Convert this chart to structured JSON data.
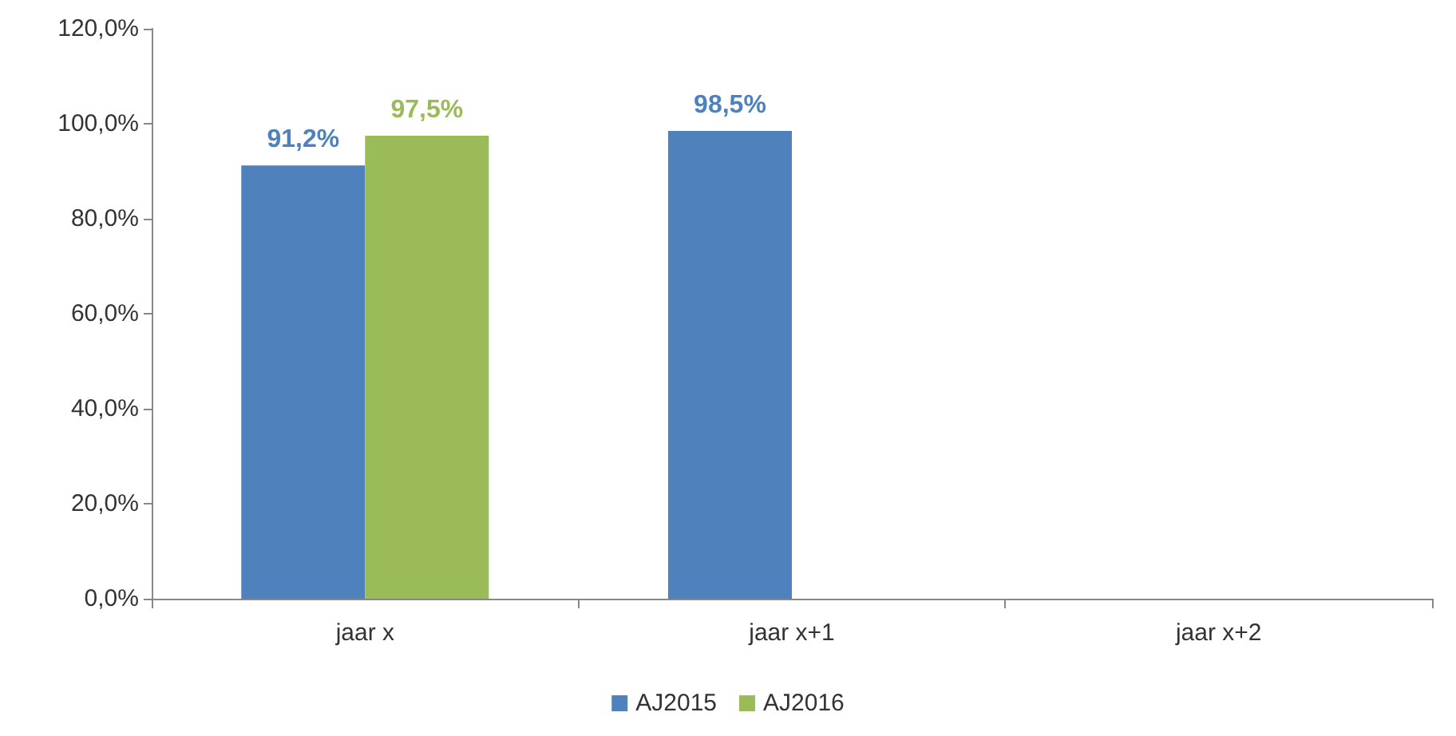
{
  "chart_data": {
    "type": "bar",
    "categories": [
      "jaar x",
      "jaar x+1",
      "jaar x+2"
    ],
    "series": [
      {
        "name": "AJ2015",
        "color": "#4f81bd",
        "values": [
          91.2,
          98.5,
          null
        ],
        "value_labels": [
          "91,2%",
          "98,5%",
          null
        ]
      },
      {
        "name": "AJ2016",
        "color": "#9bbb59",
        "values": [
          97.5,
          null,
          null
        ],
        "value_labels": [
          "97,5%",
          null,
          null
        ]
      }
    ],
    "ylim": [
      0,
      120
    ],
    "yticks": [
      {
        "value": 0,
        "label": "0,0%"
      },
      {
        "value": 20,
        "label": "20,0%"
      },
      {
        "value": 40,
        "label": "40,0%"
      },
      {
        "value": 60,
        "label": "60,0%"
      },
      {
        "value": 80,
        "label": "80,0%"
      },
      {
        "value": 100,
        "label": "100,0%"
      },
      {
        "value": 120,
        "label": "120,0%"
      }
    ],
    "grid": false,
    "legend": "bottom"
  }
}
